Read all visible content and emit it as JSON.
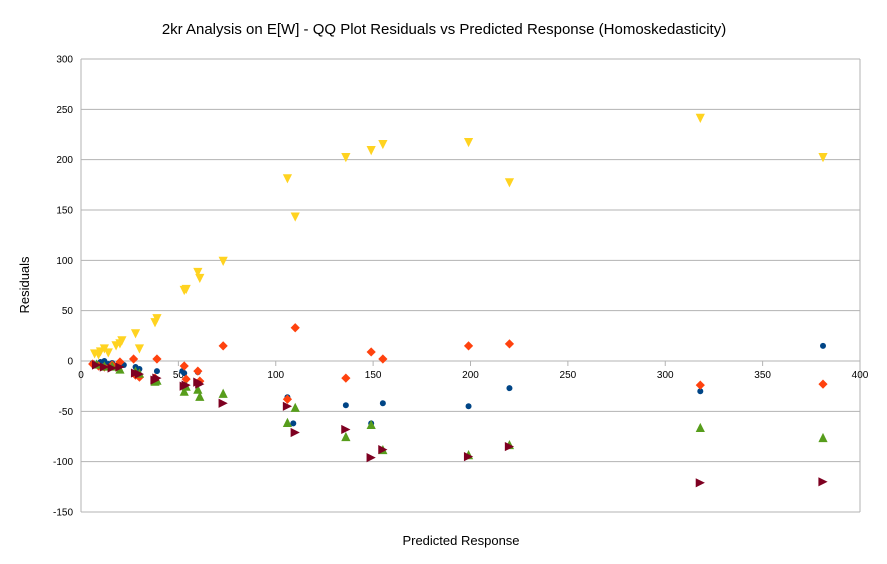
{
  "chart_data": {
    "type": "scatter",
    "title": "2kr Analysis on E[W] - QQ Plot Residuals vs Predicted Response (Homoskedasticity)",
    "xlabel": "Predicted Response",
    "ylabel": "Residuals",
    "xlim": [
      0,
      400
    ],
    "ylim": [
      -150,
      300
    ],
    "xticks": [
      0,
      50,
      100,
      150,
      200,
      250,
      300,
      350,
      400
    ],
    "yticks": [
      -150,
      -100,
      -50,
      0,
      50,
      100,
      150,
      200,
      250,
      300
    ],
    "grid": "horizontal",
    "legend": "none",
    "series": [
      {
        "marker": "circle",
        "color": "#004586",
        "points": [
          [
            6,
            -2
          ],
          [
            8,
            -4
          ],
          [
            10,
            -1
          ],
          [
            12,
            0
          ],
          [
            14,
            -3
          ],
          [
            16,
            -2
          ],
          [
            18,
            -5
          ],
          [
            20,
            -3
          ],
          [
            22,
            -4
          ],
          [
            28,
            -6
          ],
          [
            30,
            -8
          ],
          [
            38,
            -18
          ],
          [
            39,
            -10
          ],
          [
            52,
            -10
          ],
          [
            53,
            -12
          ],
          [
            60,
            -11
          ],
          [
            61,
            -22
          ],
          [
            106,
            -36
          ],
          [
            109,
            -62
          ],
          [
            136,
            -44
          ],
          [
            149,
            -62
          ],
          [
            155,
            -42
          ],
          [
            199,
            -45
          ],
          [
            220,
            -27
          ],
          [
            318,
            -30
          ],
          [
            381,
            15
          ]
        ]
      },
      {
        "marker": "diamond",
        "color": "#ff420e",
        "points": [
          [
            6,
            -3
          ],
          [
            9,
            -5
          ],
          [
            12,
            -6
          ],
          [
            16,
            -4
          ],
          [
            20,
            -1
          ],
          [
            27,
            2
          ],
          [
            28,
            -14
          ],
          [
            30,
            -16
          ],
          [
            38,
            -17
          ],
          [
            39,
            2
          ],
          [
            53,
            -5
          ],
          [
            54,
            -18
          ],
          [
            60,
            -10
          ],
          [
            61,
            -20
          ],
          [
            73,
            15
          ],
          [
            106,
            -38
          ],
          [
            110,
            33
          ],
          [
            136,
            -17
          ],
          [
            149,
            9
          ],
          [
            155,
            2
          ],
          [
            199,
            15
          ],
          [
            220,
            17
          ],
          [
            318,
            -24
          ],
          [
            381,
            -23
          ]
        ]
      },
      {
        "marker": "triangle-down",
        "color": "#ffd320",
        "points": [
          [
            7,
            7
          ],
          [
            9,
            6
          ],
          [
            10,
            9
          ],
          [
            12,
            12
          ],
          [
            14,
            8
          ],
          [
            18,
            15
          ],
          [
            20,
            17
          ],
          [
            21,
            20
          ],
          [
            28,
            27
          ],
          [
            30,
            12
          ],
          [
            38,
            38
          ],
          [
            39,
            42
          ],
          [
            53,
            70
          ],
          [
            54,
            71
          ],
          [
            60,
            88
          ],
          [
            61,
            82
          ],
          [
            73,
            99
          ],
          [
            106,
            181
          ],
          [
            110,
            143
          ],
          [
            136,
            202
          ],
          [
            149,
            209
          ],
          [
            155,
            215
          ],
          [
            199,
            217
          ],
          [
            220,
            177
          ],
          [
            318,
            241
          ],
          [
            381,
            202
          ]
        ]
      },
      {
        "marker": "triangle-up",
        "color": "#579d1c",
        "points": [
          [
            8,
            -3
          ],
          [
            12,
            -5
          ],
          [
            16,
            -5
          ],
          [
            20,
            -8
          ],
          [
            28,
            -10
          ],
          [
            30,
            -12
          ],
          [
            38,
            -20
          ],
          [
            39,
            -19
          ],
          [
            53,
            -30
          ],
          [
            54,
            -25
          ],
          [
            60,
            -28
          ],
          [
            61,
            -35
          ],
          [
            73,
            -32
          ],
          [
            106,
            -61
          ],
          [
            110,
            -46
          ],
          [
            136,
            -75
          ],
          [
            149,
            -63
          ],
          [
            155,
            -88
          ],
          [
            199,
            -93
          ],
          [
            220,
            -83
          ],
          [
            318,
            -66
          ],
          [
            381,
            -76
          ]
        ]
      },
      {
        "marker": "triangle-right",
        "color": "#7e0021",
        "points": [
          [
            8,
            -4
          ],
          [
            12,
            -6
          ],
          [
            16,
            -7
          ],
          [
            20,
            -6
          ],
          [
            28,
            -12
          ],
          [
            30,
            -13
          ],
          [
            38,
            -19
          ],
          [
            39,
            -17
          ],
          [
            53,
            -25
          ],
          [
            54,
            -24
          ],
          [
            60,
            -21
          ],
          [
            61,
            -23
          ],
          [
            73,
            -42
          ],
          [
            106,
            -45
          ],
          [
            110,
            -71
          ],
          [
            136,
            -68
          ],
          [
            149,
            -96
          ],
          [
            155,
            -88
          ],
          [
            199,
            -95
          ],
          [
            220,
            -85
          ],
          [
            318,
            -121
          ],
          [
            381,
            -120
          ]
        ]
      }
    ]
  }
}
